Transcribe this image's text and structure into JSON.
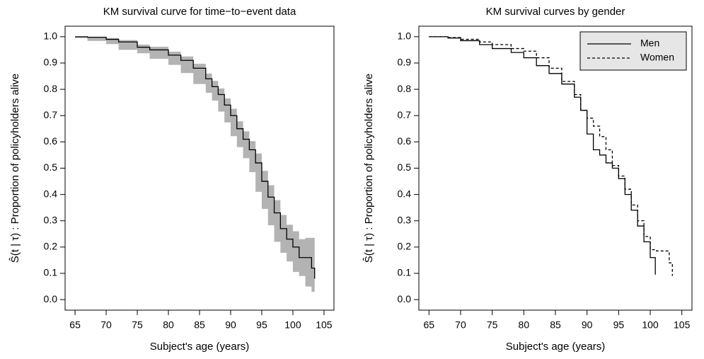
{
  "chart_data": [
    {
      "type": "line",
      "title": "KM survival curve for time−to−event data",
      "x_label": "Subject's age (years)",
      "y_label": "Ŝ(t | τ) : Proportion of policyholders alive",
      "xlim": [
        63.4,
        106.6
      ],
      "ylim": [
        -0.04,
        1.04
      ],
      "xticks": [
        65,
        70,
        75,
        80,
        85,
        90,
        95,
        100,
        105
      ],
      "yticks": [
        {
          "value": 0,
          "label": "0.0"
        },
        0.1,
        0.2,
        0.3,
        0.4,
        0.5,
        0.6,
        0.7,
        0.8,
        0.9,
        {
          "value": 1,
          "label": "1.0"
        }
      ],
      "step": true,
      "x": [
        65,
        67,
        70,
        72,
        75,
        77,
        80,
        82,
        84,
        86,
        87,
        88,
        89,
        90,
        91,
        92,
        93,
        94,
        95,
        96,
        97,
        98,
        99,
        100,
        101,
        102,
        103,
        103.5
      ],
      "series": [
        {
          "color": "#000000",
          "dash": false,
          "values": [
            1.0,
            0.998,
            0.99,
            0.98,
            0.96,
            0.95,
            0.93,
            0.91,
            0.88,
            0.84,
            0.81,
            0.78,
            0.74,
            0.7,
            0.65,
            0.61,
            0.57,
            0.52,
            0.45,
            0.39,
            0.33,
            0.27,
            0.23,
            0.2,
            0.16,
            0.16,
            0.12,
            0.08
          ]
        }
      ],
      "band": {
        "color": "#b3b3b3",
        "upper": [
          1.0,
          1.0,
          0.995,
          0.987,
          0.97,
          0.962,
          0.943,
          0.925,
          0.897,
          0.86,
          0.832,
          0.803,
          0.765,
          0.726,
          0.678,
          0.64,
          0.603,
          0.556,
          0.49,
          0.435,
          0.378,
          0.322,
          0.285,
          0.26,
          0.23,
          0.235,
          0.235,
          0.23
        ],
        "lower": [
          1.0,
          0.995,
          0.984,
          0.972,
          0.95,
          0.937,
          0.916,
          0.893,
          0.862,
          0.82,
          0.787,
          0.757,
          0.715,
          0.674,
          0.622,
          0.58,
          0.538,
          0.485,
          0.41,
          0.345,
          0.283,
          0.22,
          0.178,
          0.145,
          0.105,
          0.09,
          0.05,
          0.03
        ]
      }
    },
    {
      "type": "line",
      "title": "KM survival curves by gender",
      "x_label": "Subject's age (years)",
      "y_label": "Ŝ(t | τ) : Proportion of policyholders alive",
      "xlim": [
        63.4,
        106.6
      ],
      "ylim": [
        -0.04,
        1.04
      ],
      "xticks": [
        65,
        70,
        75,
        80,
        85,
        90,
        95,
        100,
        105
      ],
      "yticks": [
        {
          "value": 0,
          "label": "0.0"
        },
        0.1,
        0.2,
        0.3,
        0.4,
        0.5,
        0.6,
        0.7,
        0.8,
        0.9,
        {
          "value": 1,
          "label": "1.0"
        }
      ],
      "step": true,
      "legend": "top-right",
      "series": [
        {
          "name": "Men",
          "color": "#000000",
          "dash": false,
          "x": [
            65,
            68,
            70,
            73,
            75,
            78,
            80,
            82,
            84,
            86,
            88,
            89,
            90,
            91,
            92,
            93,
            94,
            95,
            96,
            97,
            98,
            99,
            100,
            100.8
          ],
          "values": [
            1.0,
            0.995,
            0.985,
            0.97,
            0.955,
            0.94,
            0.92,
            0.89,
            0.86,
            0.82,
            0.77,
            0.72,
            0.63,
            0.57,
            0.55,
            0.52,
            0.5,
            0.46,
            0.4,
            0.34,
            0.28,
            0.22,
            0.16,
            0.095
          ]
        },
        {
          "name": "Women",
          "color": "#000000",
          "dash": true,
          "x": [
            65,
            68,
            70,
            73,
            75,
            78,
            80,
            82,
            84,
            86,
            88,
            89,
            90,
            91,
            92,
            93,
            94,
            95,
            96,
            97,
            98,
            99,
            100,
            101,
            102,
            103,
            103.5
          ],
          "values": [
            1.0,
            0.997,
            0.99,
            0.98,
            0.97,
            0.955,
            0.945,
            0.92,
            0.88,
            0.83,
            0.78,
            0.72,
            0.69,
            0.66,
            0.62,
            0.57,
            0.51,
            0.47,
            0.42,
            0.36,
            0.3,
            0.24,
            0.19,
            0.185,
            0.185,
            0.14,
            0.09
          ]
        }
      ]
    }
  ]
}
